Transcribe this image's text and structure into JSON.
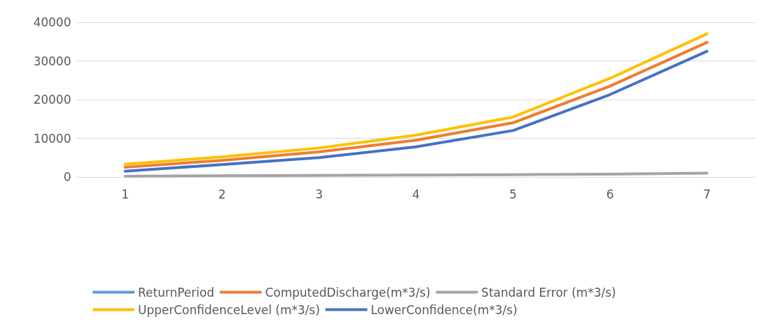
{
  "chart_data": {
    "type": "line",
    "categories": [
      "1",
      "2",
      "3",
      "4",
      "5",
      "6",
      "7"
    ],
    "ylim": [
      0,
      40000
    ],
    "yticks": [
      0,
      10000,
      20000,
      30000,
      40000
    ],
    "grid": "y",
    "legend": "bottom",
    "marker": "none",
    "line_style": "solid",
    "series": [
      {
        "name": "ReturnPeriod",
        "color": "#5b9bd5",
        "values": [
          null,
          null,
          null,
          null,
          null,
          null,
          null
        ]
      },
      {
        "name": "ComputedDischarge(m*3/s)",
        "color": "#ed7d31",
        "values": [
          2500,
          4300,
          6500,
          9500,
          14000,
          23500,
          34800
        ]
      },
      {
        "name": "Standard Error (m*3/s)",
        "color": "#a5a5a5",
        "values": [
          200,
          300,
          400,
          500,
          600,
          700,
          1000
        ]
      },
      {
        "name": "UpperConfidenceLevel (m*3/s)",
        "color": "#ffc000",
        "values": [
          3300,
          5200,
          7500,
          10800,
          15500,
          25500,
          37000
        ]
      },
      {
        "name": "LowerConfidence(m*3/s)",
        "color": "#4472c4",
        "values": [
          1500,
          3200,
          5000,
          7800,
          12000,
          21300,
          32500
        ]
      }
    ]
  }
}
